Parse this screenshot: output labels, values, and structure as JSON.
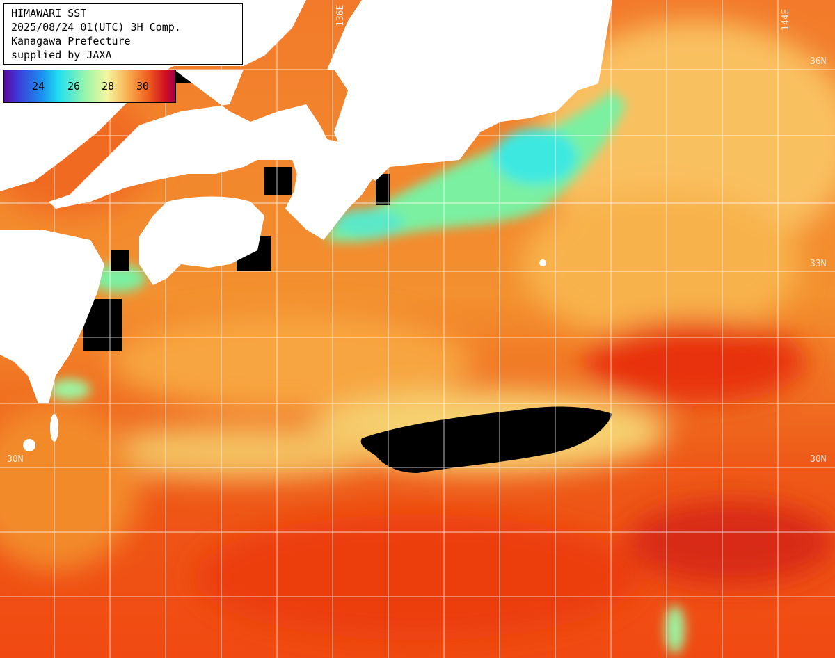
{
  "info_box": {
    "line1": "HIMAWARI SST",
    "line2": "2025/08/24 01(UTC) 3H Comp.",
    "line3": "Kanagawa Prefecture",
    "line4": "supplied by JAXA"
  },
  "legend": {
    "ticks": [
      "24",
      "26",
      "28",
      "30"
    ]
  },
  "grid_labels": {
    "lon_136": "136E",
    "lon_144": "144E",
    "lat_36": "36N",
    "lat_33_right": "33N",
    "lat_33_left": "33",
    "lat_30_left": "30N",
    "lat_30_right": "30N"
  },
  "colors": {
    "land": "#ffffff",
    "cloud_mask": "#000000",
    "grid": "#ffffff",
    "sst_warm": "#f04a10",
    "sst_cool": "#6ff0b0"
  }
}
